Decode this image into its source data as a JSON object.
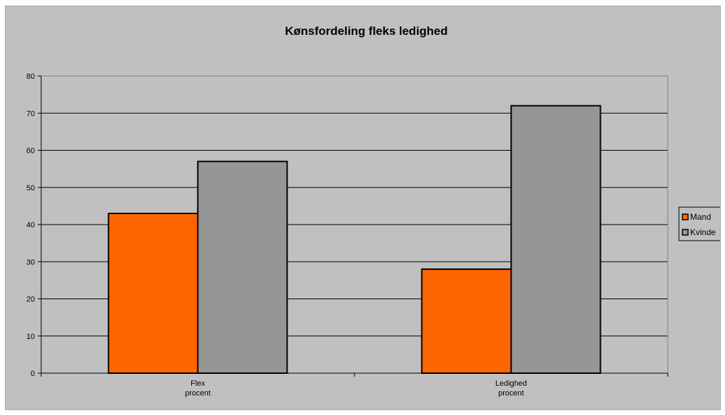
{
  "chart_data": {
    "type": "bar",
    "title": "Kønsfordeling fleks ledighed",
    "categories": [
      [
        "Flex",
        "procent"
      ],
      [
        "Ledighed",
        "procent"
      ]
    ],
    "series": [
      {
        "name": "Mand",
        "values": [
          43,
          28
        ],
        "color": "#ff6600"
      },
      {
        "name": "Kvinde",
        "values": [
          57,
          72
        ],
        "color": "#969696"
      }
    ],
    "ylim": [
      0,
      80
    ],
    "yticks": [
      0,
      10,
      20,
      30,
      40,
      50,
      60,
      70,
      80
    ],
    "xlabel": "",
    "ylabel": "",
    "grid": true,
    "legend": "right",
    "plot_background": "#c0c0c0"
  }
}
